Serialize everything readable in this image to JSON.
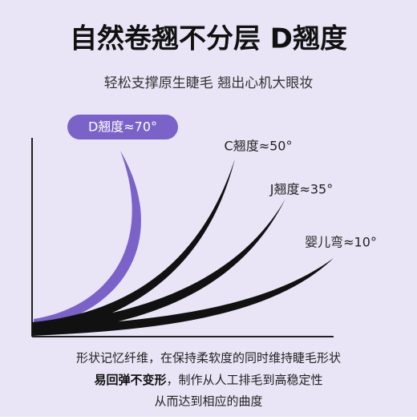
{
  "title": "自然卷翘不分层 D翘度",
  "subtitle": "轻松支撑原生睫毛 翘出心机大眼妆",
  "curls": [
    {
      "label": "D翘度≈70°"
    },
    {
      "label": "C翘度≈50°"
    },
    {
      "label": "J翘度≈35°"
    },
    {
      "label": "婴儿弯≈10°"
    }
  ],
  "description": {
    "line1": "形状记忆纤维，在保持柔软度的同时维持睫毛形状",
    "line2_bold": "易回弹不变形",
    "line2_rest": "，制作从人工排毛到高稳定性",
    "line3": "从而达到相应的曲度"
  }
}
